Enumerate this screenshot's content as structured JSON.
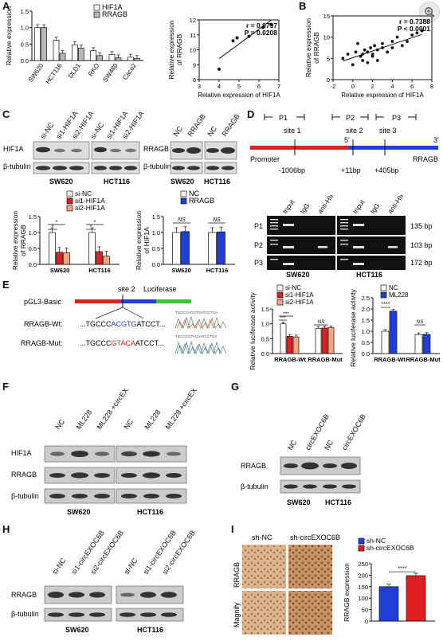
{
  "panel_labels": {
    "A": "A",
    "B": "B",
    "C": "C",
    "D": "D",
    "E": "E",
    "F": "F",
    "G": "G",
    "H": "H",
    "I": "I"
  },
  "colors": {
    "white_bar": "#ffffff",
    "grey_bar": "#b8b8b8",
    "red": "#e02020",
    "salmon": "#f4a582",
    "blue": "#1f3fd6",
    "green": "#3cc43c"
  },
  "chart_data": [
    {
      "type": "bar",
      "panel": "A-left",
      "categories": [
        "SW620",
        "HCT116",
        "DLD1",
        "RKO",
        "SW480",
        "Caco2"
      ],
      "series": [
        {
          "name": "HIF1A",
          "values": [
            1.0,
            0.62,
            0.48,
            0.3,
            0.18,
            0.1
          ]
        },
        {
          "name": "RRAGB",
          "values": [
            1.0,
            0.22,
            0.38,
            0.15,
            0.08,
            0.06
          ]
        }
      ],
      "ylabel": "Relative expression",
      "ylim": [
        0,
        1.5
      ],
      "yticks": [
        "0.0",
        "0.5",
        "1.0",
        "1.5"
      ]
    },
    {
      "type": "scatter",
      "panel": "A-right",
      "x": [
        4.0,
        4.7,
        4.9,
        5.5,
        6.2,
        6.6
      ],
      "y": [
        8.7,
        10.6,
        10.8,
        10.9,
        11.5,
        11.7
      ],
      "xlabel": "Relative expression of HIF1A",
      "ylabel": "Relative expression of RRAGB",
      "xlim": [
        3,
        7
      ],
      "ylim": [
        8,
        12
      ],
      "xticks": [
        "3",
        "4",
        "5",
        "6",
        "7"
      ],
      "yticks": [
        "8",
        "9",
        "10",
        "11",
        "12"
      ],
      "annotation": [
        "r = 0.8797",
        "P = 0.0208"
      ]
    },
    {
      "type": "scatter",
      "panel": "B",
      "x": [
        -1.0,
        -0.5,
        0.0,
        0.3,
        0.5,
        0.8,
        1.0,
        1.2,
        1.5,
        1.5,
        1.8,
        2.0,
        2.2,
        2.5,
        2.5,
        3.0,
        3.0,
        3.5,
        4.0,
        4.0,
        4.5,
        5.0,
        5.5,
        6.0,
        6.5,
        7.0,
        2.0,
        1.0
      ],
      "y": [
        5.0,
        6.0,
        3.5,
        6.5,
        8.5,
        5.5,
        6.0,
        7.0,
        4.0,
        6.5,
        7.5,
        6.0,
        8.0,
        7.0,
        4.5,
        7.5,
        8.5,
        6.5,
        9.0,
        7.5,
        10.0,
        8.0,
        9.0,
        10.5,
        11.0,
        11.5,
        5.5,
        4.5
      ],
      "xlabel": "Relative expression of HIF1A",
      "ylabel": "Relative expression of RRAGB",
      "xlim": [
        -2,
        8
      ],
      "ylim": [
        0,
        15
      ],
      "xticks": [
        "-2",
        "0",
        "2",
        "4",
        "6",
        "8"
      ],
      "yticks": [
        "0",
        "5",
        "10",
        "15"
      ],
      "annotation": [
        "r = 0.7388",
        "P < 0.0001"
      ]
    },
    {
      "type": "bar",
      "panel": "C-left",
      "categories": [
        "SW620",
        "HCT116"
      ],
      "series": [
        {
          "name": "si-NC",
          "values": [
            1.0,
            1.0
          ]
        },
        {
          "name": "si1-HIF1A",
          "values": [
            0.38,
            0.4
          ]
        },
        {
          "name": "si2-HIF1A",
          "values": [
            0.36,
            0.26
          ]
        }
      ],
      "ylabel": "Relative expression of RRAGB",
      "ylim": [
        0,
        1.5
      ],
      "yticks": [
        "0.0",
        "0.5",
        "1.0",
        "1.5"
      ],
      "sig": [
        "*",
        "*",
        "*",
        "*"
      ]
    },
    {
      "type": "bar",
      "panel": "C-right",
      "categories": [
        "SW620",
        "HCT116"
      ],
      "series": [
        {
          "name": "NC",
          "values": [
            1.0,
            1.0
          ]
        },
        {
          "name": "RRAGB",
          "values": [
            1.03,
            1.02
          ]
        }
      ],
      "ylabel": "Relative expression of HIF1A",
      "ylim": [
        0,
        1.5
      ],
      "yticks": [
        "0.0",
        "0.5",
        "1.0",
        "1.5"
      ],
      "sig": [
        "NS",
        "NS"
      ]
    },
    {
      "type": "bar",
      "panel": "E-middle",
      "categories": [
        "RRAGB-Wt",
        "RRAGB-Mut"
      ],
      "series": [
        {
          "name": "si-NC",
          "values": [
            1.0,
            0.85
          ]
        },
        {
          "name": "si1-HIF1A",
          "values": [
            0.58,
            0.86
          ]
        },
        {
          "name": "si2-HIF1A",
          "values": [
            0.56,
            0.87
          ]
        }
      ],
      "ylabel": "Relative luciferase activity",
      "ylim": [
        0,
        1.5
      ],
      "yticks": [
        "0.0",
        "0.5",
        "1.0",
        "1.5"
      ],
      "sig": [
        "***",
        "***",
        "NS"
      ]
    },
    {
      "type": "bar",
      "panel": "E-right",
      "categories": [
        "RRAGB-Wt",
        "RRAGB-Mut"
      ],
      "series": [
        {
          "name": "NC",
          "values": [
            1.0,
            0.85
          ]
        },
        {
          "name": "ML228",
          "values": [
            1.9,
            0.86
          ]
        }
      ],
      "ylabel": "Relative luciferase activity",
      "ylim": [
        0,
        2.5
      ],
      "yticks": [
        "0.0",
        "0.5",
        "1.0",
        "1.5",
        "2.0",
        "2.5"
      ],
      "sig": [
        "****",
        "NS"
      ]
    },
    {
      "type": "bar",
      "panel": "I",
      "categories": [
        "sh-NC",
        "sh-circEXOC6B"
      ],
      "series": [
        {
          "name": "RRAGB expression",
          "values": [
            150,
            198
          ]
        }
      ],
      "ylabel": "RRAGB expression",
      "ylim": [
        0,
        250
      ],
      "yticks": [
        "0",
        "50",
        "100",
        "150",
        "200",
        "250"
      ],
      "legend": [
        "sh-NC",
        "sh-circEXOC6B"
      ],
      "sig": [
        "****"
      ]
    }
  ],
  "C_blot_left": {
    "lanes": [
      "si-NC",
      "si1-HIF1A",
      "si2-HIF1A",
      "si-NC",
      "si1-HIF1A",
      "si2-HIF1A"
    ],
    "rows": [
      "HIF1A",
      "β-tubulin"
    ],
    "cells": [
      "SW620",
      "HCT116"
    ]
  },
  "C_blot_right": {
    "lanes": [
      "NC",
      "RRAGB",
      "NC",
      "RRAGB"
    ],
    "rows": [
      "RRAGB",
      "β-tubulin"
    ],
    "cells": [
      "SW620",
      "HCT116"
    ]
  },
  "D_map": {
    "primers": [
      "P1",
      "P2",
      "P3"
    ],
    "sites": [
      "site 1",
      "site 2",
      "site 3"
    ],
    "five": "5'",
    "three": "3'",
    "promoter": "Promoter",
    "gene": "RRAGB",
    "positions": [
      "-1006bp",
      "+11bp",
      "+405bp"
    ]
  },
  "D_gel": {
    "lanes": [
      "Input",
      "IgG",
      "anti-HIF1A",
      "Input",
      "IgG",
      "anti-HIF1A"
    ],
    "rows": [
      "P1",
      "P2",
      "P3"
    ],
    "sizes": [
      "135 bp",
      "103 bp",
      "172 bp"
    ],
    "cells": [
      "SW620",
      "HCT116"
    ]
  },
  "E_construct": {
    "vector": "pGL3-Basic",
    "site": "site 2",
    "reporter": "Luciferase",
    "wt_label": "RRAGB-Wt:",
    "wt_pre": "...TGCCC",
    "wt_mid": "ACGTG",
    "wt_post": "ATCCT...",
    "mut_label": "RRAGB-Mut:",
    "mut_pre": "...TGCCC",
    "mut_mid": "GTACA",
    "mut_post": "ATCCT...",
    "seq1": "TGCCCACGTGATCCTGA",
    "seq2": "TGCCCGTACAATCCTGA"
  },
  "F_blot": {
    "lanes": [
      "NC",
      "ML228",
      "ML228\n+circEXOC6B",
      "NC",
      "ML228",
      "ML228\n+circEXOC6B"
    ],
    "rows": [
      "HIF1A",
      "RRAGB",
      "β-tubulin"
    ],
    "cells": [
      "SW620",
      "HCT116"
    ]
  },
  "G_blot": {
    "lanes": [
      "NC",
      "circEXOC6B",
      "NC",
      "circEXOC6B"
    ],
    "rows": [
      "RRAGB",
      "β-tubulin"
    ],
    "cells": [
      "SW620",
      "HCT116"
    ]
  },
  "H_blot": {
    "lanes": [
      "si-NC",
      "si1-circEXOC6B",
      "si2-circEXOC6B",
      "si-NC",
      "si1-circEXOC6B",
      "si2-circEXOC6B"
    ],
    "rows": [
      "RRAGB",
      "β-tubulin"
    ],
    "cells": [
      "SW620",
      "HCT116"
    ]
  },
  "I_ihc": {
    "cols": [
      "sh-NC",
      "sh-circEXOC6B"
    ],
    "rows": [
      "RRAGB",
      "Magnify"
    ]
  }
}
